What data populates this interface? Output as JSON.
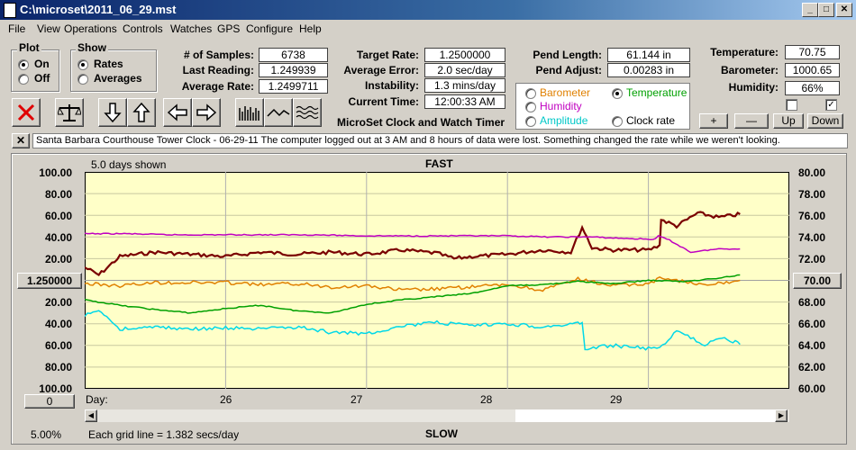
{
  "window": {
    "title": "C:\\microset\\2011_06_29.mst"
  },
  "menu": [
    "File",
    "View",
    "Operations",
    "Controls",
    "Watches",
    "GPS",
    "Configure",
    "Help"
  ],
  "plot_group": {
    "title": "Plot",
    "on": "On",
    "off": "Off",
    "selected": "On"
  },
  "show_group": {
    "title": "Show",
    "rates": "Rates",
    "averages": "Averages",
    "selected": "Rates"
  },
  "stats": {
    "samples_label": "# of Samples:",
    "samples": "6738",
    "last_label": "Last Reading:",
    "last": "1.249939",
    "avg_label": "Average Rate:",
    "avg": "1.2499711",
    "target_label": "Target Rate:",
    "target": "1.2500000",
    "averr_label": "Average Error:",
    "averr": "2.0 sec/day",
    "instab_label": "Instability:",
    "instab": "1.3 mins/day",
    "time_label": "Current Time:",
    "time": "12:00:33 AM",
    "pendlen_label": "Pend Length:",
    "pendlen": "61.144 in",
    "pendadj_label": "Pend Adjust:",
    "pendadj": "0.00283 in",
    "temp_label": "Temperature:",
    "temp": "70.75",
    "baro_label": "Barometer:",
    "baro": "1000.65",
    "hum_label": "Humidity:",
    "hum": "66%"
  },
  "sensors": {
    "barometer": "Barometer",
    "temperature": "Temperature",
    "humidity": "Humidity",
    "amplitude": "Amplitude",
    "clockrate": "Clock rate",
    "selected": "Temperature",
    "colors": {
      "barometer": "#e08000",
      "temperature": "#00a000",
      "humidity": "#c000c0",
      "amplitude": "#00c8c8",
      "clockrate": "#000000"
    }
  },
  "app_heading": "MicroSet Clock and Watch Timer",
  "adjust_buttons": {
    "plus": "+",
    "minus": "—",
    "up": "Up",
    "down": "Down"
  },
  "note": "Santa Barbara Courthouse Tower Clock  -  06-29-11 The computer logged out at 3 AM and 8 hours of data were lost. Something changed the rate while we weren't looking.",
  "close_note": "✕",
  "chart_header": {
    "days_shown": "5.0 days shown",
    "top": "FAST",
    "bottom": "SLOW",
    "day_label": "Day:"
  },
  "left_center_value": "1.250000",
  "right_center_value": "70.00",
  "left_zero_button": "0",
  "footer": {
    "scale": "5.00%",
    "grid": "Each grid line = 1.382 secs/day"
  },
  "chart_data": {
    "type": "line",
    "x_axis": {
      "label": "Day:",
      "ticks": [
        "26",
        "27",
        "28",
        "29"
      ],
      "range": [
        25.0,
        30.0
      ]
    },
    "y_left": {
      "ticks": [
        "100.00",
        "80.00",
        "60.00",
        "40.00",
        "20.00",
        "1.250000",
        "20.00",
        "40.00",
        "60.00",
        "80.00",
        "100.00"
      ],
      "range": [
        -100,
        100
      ]
    },
    "y_right": {
      "ticks": [
        "80.00",
        "78.00",
        "76.00",
        "74.00",
        "72.00",
        "70.00",
        "68.00",
        "66.00",
        "64.00",
        "62.00",
        "60.00"
      ],
      "range": [
        60,
        80
      ]
    },
    "series": [
      {
        "name": "Clock rate",
        "color": "#7a0000",
        "x": [
          25.0,
          25.1,
          25.25,
          25.5,
          25.75,
          26.0,
          26.25,
          26.5,
          26.75,
          27.0,
          27.25,
          27.5,
          27.62,
          27.75,
          28.0,
          28.25,
          28.45,
          28.53,
          28.6,
          28.75,
          29.0,
          29.08,
          29.09,
          29.2,
          29.35,
          29.5,
          29.6,
          29.65
        ],
        "y": [
          12,
          5,
          22,
          26,
          24,
          22,
          26,
          24,
          26,
          24,
          28,
          25,
          20,
          22,
          24,
          28,
          26,
          49,
          30,
          28,
          28,
          32,
          56,
          50,
          62,
          58,
          60,
          61
        ]
      },
      {
        "name": "Humidity",
        "color": "#c000c0",
        "x": [
          25.0,
          25.3,
          25.6,
          26.0,
          26.3,
          26.6,
          27.0,
          27.3,
          27.6,
          28.0,
          28.3,
          28.6,
          28.75,
          29.0,
          29.05,
          29.07,
          29.15,
          29.3,
          29.5,
          29.65
        ],
        "y": [
          43,
          43,
          42,
          42,
          42,
          42,
          41,
          41,
          41,
          41,
          40,
          40,
          39,
          38,
          38,
          41,
          37,
          26,
          29,
          29
        ]
      },
      {
        "name": "Barometer",
        "color": "#e08000",
        "x": [
          25.0,
          25.25,
          25.5,
          26.0,
          26.25,
          26.5,
          26.75,
          27.0,
          27.25,
          27.5,
          27.75,
          28.0,
          28.25,
          28.5,
          28.75,
          29.0,
          29.1,
          29.2,
          29.4,
          29.65
        ],
        "y": [
          -3,
          -5,
          -2,
          -2,
          -4,
          -3,
          -6,
          -5,
          -9,
          -8,
          -6,
          -4,
          -9,
          1,
          -5,
          -3,
          3,
          0,
          -5,
          0
        ]
      },
      {
        "name": "Temperature",
        "color": "#00a000",
        "x": [
          25.0,
          25.25,
          25.5,
          25.75,
          26.0,
          26.25,
          26.5,
          26.75,
          27.0,
          27.25,
          27.5,
          27.75,
          28.0,
          28.25,
          28.5,
          28.75,
          29.0,
          29.25,
          29.5,
          29.65
        ],
        "y": [
          -18,
          -23,
          -27,
          -30,
          -26,
          -23,
          -28,
          -30,
          -22,
          -18,
          -15,
          -12,
          -5,
          -4,
          -1,
          -3,
          0,
          -1,
          2,
          5
        ]
      },
      {
        "name": "Amplitude",
        "color": "#00d8e8",
        "x": [
          25.0,
          25.1,
          25.25,
          25.5,
          25.75,
          26.0,
          26.25,
          26.5,
          26.75,
          27.0,
          27.25,
          27.5,
          27.75,
          28.0,
          28.25,
          28.5,
          28.53,
          28.55,
          28.75,
          29.0,
          29.1,
          29.2,
          29.4,
          29.5,
          29.6,
          29.65
        ],
        "y": [
          -33,
          -27,
          -45,
          -43,
          -45,
          -44,
          -45,
          -43,
          -48,
          -49,
          -42,
          -39,
          -42,
          -40,
          -43,
          -40,
          -38,
          -63,
          -60,
          -63,
          -60,
          -47,
          -59,
          -53,
          -56,
          -59
        ]
      }
    ]
  }
}
